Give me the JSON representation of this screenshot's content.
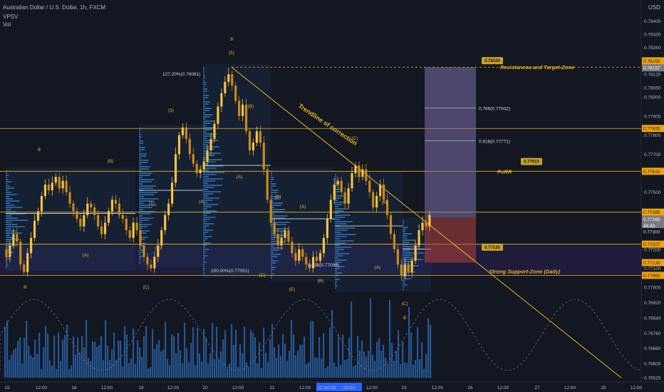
{
  "header": {
    "title": "Australian Dollar / U.S. Dollar, 1h, FXCM",
    "indicator1": "VPSV",
    "indicator2": "Vol",
    "currency": "USD"
  },
  "chart_data": {
    "type": "candlestick",
    "symbol": "AUDUSD",
    "ylim": [
      0.76525,
      0.78465
    ],
    "y_ticks": [
      "0.78400",
      "0.78330",
      "0.78260",
      "0.78190",
      "0.78120",
      "0.78050",
      "0.78000",
      "0.77900",
      "0.77800",
      "0.77700",
      "0.77600",
      "0.77500",
      "0.77400",
      "0.77300",
      "0.77200",
      "0.77100",
      "0.77000",
      "0.76920",
      "0.76840",
      "0.76760",
      "0.76680",
      "0.76600",
      "0.76525"
    ],
    "price_tags": [
      {
        "value": "0.78158",
        "color": "#f0a30a"
      },
      {
        "value": "0.78157",
        "color": "#787b86"
      },
      {
        "value": "0.77835",
        "color": "#f0a30a"
      },
      {
        "value": "0.77610",
        "color": "#f0a30a"
      },
      {
        "value": "0.77395",
        "color": "#f0a30a"
      },
      {
        "value": "0.77393",
        "color": "#131722"
      },
      {
        "value": "0.77365",
        "color": "#787b86"
      },
      {
        "value": "44:43",
        "color": "#787b86"
      },
      {
        "value": "0.77300",
        "color": "#131722"
      },
      {
        "value": "0.77227",
        "color": "#f0a30a"
      },
      {
        "value": "0.77130",
        "color": "#f0a30a"
      },
      {
        "value": "0.77063",
        "color": "#f0a30a"
      }
    ],
    "x_ticks": [
      "15",
      "12:00",
      "16",
      "12:00",
      "19",
      "12:00",
      "20",
      "12:00",
      "21",
      "12:00",
      "21-04-2021",
      "23:00",
      "12:00",
      "23",
      "12:00",
      "26",
      "12:00",
      "27",
      "12:00",
      "28",
      "12:00"
    ],
    "horizontal_levels": [
      0.77835,
      0.7761,
      0.77395,
      0.77227,
      0.77063
    ],
    "fibonacci": [
      "0.786(0.77942)",
      "0.618(0.77771)"
    ],
    "fib_labels": [
      "127.20%(0.78081)",
      "200.00%(0.77051)",
      "0.618(0.77099)"
    ],
    "callouts": [
      {
        "tag": "0.78160",
        "text": "Resistancea and Target-Zone"
      },
      {
        "tag": "0.77610",
        "text": "PoRR"
      },
      {
        "tag": "0.77135",
        "text": "Strong Support-Zone (Daily)"
      }
    ],
    "trendline_label": "Trendline of correction",
    "wave_labels": [
      "⑤",
      "(B)",
      "(A)",
      "④",
      "(C)",
      "(1)",
      "(2)",
      "(3)",
      "(4)",
      "③",
      "(5)",
      "(B)",
      "(A)",
      "(C)",
      "(D)",
      "(E)",
      "(A)",
      "(B)",
      "(C)",
      "(B)",
      "(A)",
      "(C)",
      "④"
    ],
    "candles": [
      0.772,
      0.7716,
      0.7722,
      0.7728,
      0.7724,
      0.7712,
      0.7708,
      0.7718,
      0.7726,
      0.7735,
      0.774,
      0.7748,
      0.7754,
      0.7751,
      0.7755,
      0.7758,
      0.7752,
      0.7756,
      0.775,
      0.7744,
      0.774,
      0.7736,
      0.7732,
      0.7738,
      0.7744,
      0.7742,
      0.7738,
      0.7732,
      0.7728,
      0.7734,
      0.774,
      0.7746,
      0.7744,
      0.7738,
      0.7736,
      0.773,
      0.7726,
      0.7734,
      0.773,
      0.7722,
      0.7716,
      0.7712,
      0.771,
      0.7716,
      0.7722,
      0.773,
      0.7738,
      0.7744,
      0.7755,
      0.777,
      0.778,
      0.7784,
      0.7778,
      0.777,
      0.7765,
      0.776,
      0.7762,
      0.7766,
      0.7772,
      0.7778,
      0.7786,
      0.7795,
      0.7802,
      0.7808,
      0.7812,
      0.7806,
      0.7798,
      0.779,
      0.7796,
      0.7782,
      0.7772,
      0.7776,
      0.7782,
      0.7776,
      0.7762,
      0.7746,
      0.7734,
      0.7728,
      0.7722,
      0.7726,
      0.773,
      0.7724,
      0.7718,
      0.7714,
      0.772,
      0.7716,
      0.7712,
      0.771,
      0.7716,
      0.7714,
      0.7718,
      0.7726,
      0.7736,
      0.7746,
      0.7754,
      0.7756,
      0.775,
      0.7744,
      0.7752,
      0.776,
      0.7764,
      0.7758,
      0.7762,
      0.7756,
      0.775,
      0.7742,
      0.7748,
      0.7754,
      0.7746,
      0.7738,
      0.7728,
      0.772,
      0.7712,
      0.7706,
      0.7712,
      0.7708,
      0.7714,
      0.7722,
      0.773,
      0.7734,
      0.7732,
      0.7738,
      0.7736
    ]
  }
}
